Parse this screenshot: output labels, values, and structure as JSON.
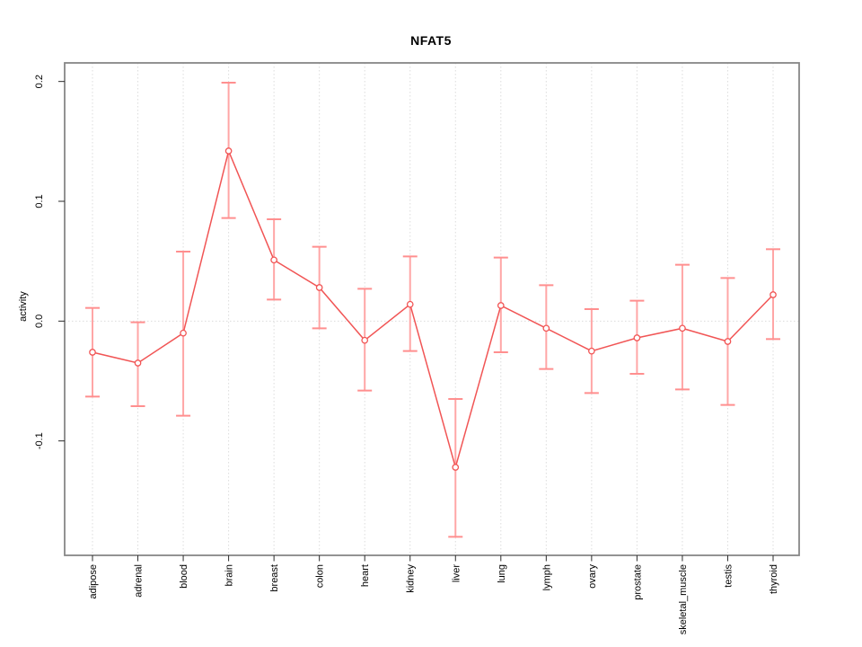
{
  "window": {
    "background": "#ffffff"
  },
  "chart_data": {
    "type": "line",
    "title": "NFAT5",
    "xlabel": "",
    "ylabel": "activity",
    "legend_position": "none",
    "grid": "dotted vertical gridline at each category; dotted horizontal line at y=0",
    "categories": [
      "adipose",
      "adrenal",
      "blood",
      "brain",
      "breast",
      "colon",
      "heart",
      "kidney",
      "liver",
      "lung",
      "lymph",
      "ovary",
      "prostate",
      "skeletal_muscle",
      "testis",
      "thyroid"
    ],
    "series": [
      {
        "name": "NFAT5",
        "marker": "open-circle",
        "values": [
          -0.026,
          -0.035,
          -0.01,
          0.142,
          0.051,
          0.028,
          -0.016,
          0.014,
          -0.122,
          0.013,
          -0.006,
          -0.025,
          -0.014,
          -0.006,
          -0.017,
          0.022
        ],
        "error_low": [
          -0.063,
          -0.071,
          -0.079,
          0.086,
          0.018,
          -0.006,
          -0.058,
          -0.025,
          -0.18,
          -0.026,
          -0.04,
          -0.06,
          -0.044,
          -0.057,
          -0.07,
          -0.015
        ],
        "error_high": [
          0.011,
          -0.001,
          0.058,
          0.199,
          0.085,
          0.062,
          0.027,
          0.054,
          -0.065,
          0.053,
          0.03,
          0.01,
          0.017,
          0.047,
          0.036,
          0.06
        ]
      }
    ],
    "yticks": [
      {
        "value": 0.2,
        "label": "0.2"
      },
      {
        "value": 0.1,
        "label": "0.1"
      },
      {
        "value": 0.0,
        "label": "0.0"
      },
      {
        "value": -0.1,
        "label": "-0.1"
      }
    ],
    "ylim": [
      -0.1955,
      0.2155
    ],
    "colors": {
      "line": "#f15555",
      "point_stroke": "#f15555",
      "point_fill": "#ffffff",
      "error_bar": "#ffa6a6",
      "error_cap": "#ff8f8f",
      "gridline": "#dcdcdc",
      "plot_border": "#878787",
      "axis_tick": "#2b2b2b",
      "text": "#000000"
    }
  }
}
